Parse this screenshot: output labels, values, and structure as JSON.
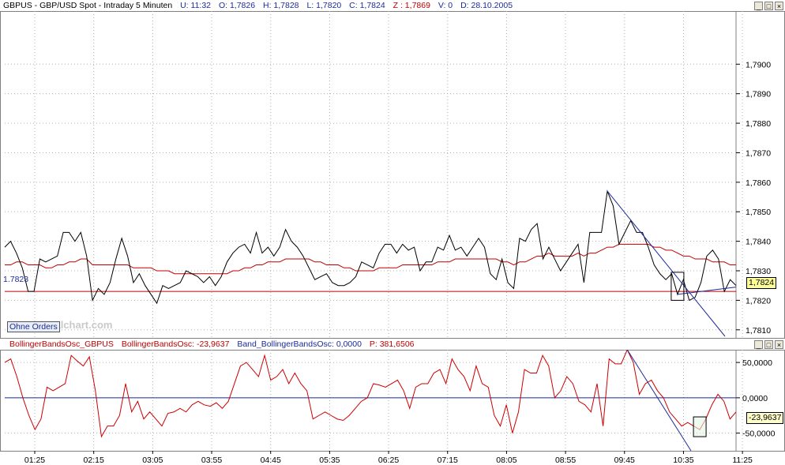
{
  "top_header": {
    "symbol": "GBPUS - GBP/USD Spot - Intraday 5 Minuten",
    "u": "U: 11:32",
    "o": "O: 1,7826",
    "h": "H: 1,7828",
    "l": "L: 1,7820",
    "c": "C: 1,7824",
    "z": "Z : 1,7869",
    "v": "V: 0",
    "d": "D: 28.10.2005"
  },
  "bottom_header": {
    "name": "BollingerBandsOsc_GBPUS",
    "osc": "BollingerBandsOsc: -23,9637",
    "band": "Band_BollingerBandsOsc: 0,0000",
    "p": "P: 381,6506"
  },
  "window_buttons": [
    "_",
    "□",
    "×"
  ],
  "watermark": "www.visualchart.com",
  "orders_button": "Ohne Orders",
  "ref_line_label": "1.7823",
  "price_tag": "1,7824",
  "osc_tag": "-23,9637",
  "colors": {
    "price": "#000000",
    "ma": "#c00000",
    "osc": "#cc0000",
    "ref_line": "#c00000",
    "zero_line": "#1a2b9c",
    "trendline": "#1a2b9c",
    "grid": "#b0b0b0"
  },
  "chart_data": [
    {
      "type": "line",
      "title": "GBPUS - GBP/USD Spot - Intraday 5 Minuten",
      "x_tick_labels": [
        "01:25",
        "02:15",
        "03:05",
        "03:55",
        "04:45",
        "05:35",
        "06:25",
        "07:15",
        "08:05",
        "08:55",
        "09:45",
        "10:35",
        "11:25"
      ],
      "y_tick_labels": [
        "1,7810",
        "1,7820",
        "1,7830",
        "1,7840",
        "1,7850",
        "1,7860",
        "1,7870",
        "1,7880",
        "1,7890",
        "1,7900"
      ],
      "ylim": [
        1.7807,
        1.7918
      ],
      "grid": true,
      "series": [
        {
          "values": [
            1.7838,
            1.784,
            1.7836,
            1.7831,
            1.7823,
            1.7823,
            1.7834,
            1.7833,
            1.7834,
            1.7835,
            1.7843,
            1.7843,
            1.784,
            1.7843,
            1.7835,
            1.782,
            1.7824,
            1.7822,
            1.7826,
            1.7834,
            1.7841,
            1.7835,
            1.7826,
            1.7829,
            1.7825,
            1.7822,
            1.7819,
            1.7825,
            1.7824,
            1.7825,
            1.7826,
            1.783,
            1.7829,
            1.7828,
            1.7826,
            1.7828,
            1.7825,
            1.7828,
            1.7833,
            1.7836,
            1.7838,
            1.7839,
            1.7836,
            1.7843,
            1.7836,
            1.7838,
            1.7835,
            1.7838,
            1.7844,
            1.784,
            1.7838,
            1.7835,
            1.7831,
            1.7827,
            1.7828,
            1.7829,
            1.7826,
            1.7825,
            1.7825,
            1.7826,
            1.7828,
            1.7833,
            1.7832,
            1.7831,
            1.7836,
            1.7839,
            1.7839,
            1.7836,
            1.7839,
            1.7837,
            1.7838,
            1.783,
            1.7833,
            1.7833,
            1.7838,
            1.7837,
            1.7842,
            1.7837,
            1.7838,
            1.7835,
            1.7838,
            1.7841,
            1.7838,
            1.7829,
            1.7827,
            1.7834,
            1.7826,
            1.7824,
            1.7841,
            1.784,
            1.7844,
            1.7846,
            1.7834,
            1.7838,
            1.7834,
            1.783,
            1.7833,
            1.7836,
            1.7839,
            1.7826,
            1.7843,
            1.7843,
            1.7843,
            1.7857,
            1.7852,
            1.7839,
            1.7843,
            1.7847,
            1.7843,
            1.7843,
            1.7838,
            1.7832,
            1.7829,
            1.7827,
            1.7829,
            1.7822,
            1.7827,
            1.782,
            1.7821,
            1.7826,
            1.7835,
            1.7837,
            1.7834,
            1.7823,
            1.7827,
            1.7825
          ]
        },
        {
          "values": [
            1.7832,
            1.7832,
            1.7833,
            1.7833,
            1.7832,
            1.7832,
            1.7832,
            1.7831,
            1.7831,
            1.7832,
            1.7832,
            1.7833,
            1.7833,
            1.7834,
            1.7834,
            1.7832,
            1.7832,
            1.7832,
            1.7832,
            1.7832,
            1.7832,
            1.7832,
            1.7831,
            1.7831,
            1.7831,
            1.7831,
            1.783,
            1.783,
            1.783,
            1.7829,
            1.7829,
            1.7829,
            1.7829,
            1.7829,
            1.7829,
            1.7829,
            1.7829,
            1.7829,
            1.7829,
            1.783,
            1.783,
            1.7831,
            1.7831,
            1.7832,
            1.7832,
            1.7833,
            1.7833,
            1.7833,
            1.7834,
            1.7834,
            1.7834,
            1.7834,
            1.7834,
            1.7833,
            1.7833,
            1.7832,
            1.7832,
            1.7832,
            1.7831,
            1.7831,
            1.783,
            1.783,
            1.783,
            1.783,
            1.7831,
            1.7831,
            1.7831,
            1.7831,
            1.7832,
            1.7832,
            1.7832,
            1.7832,
            1.7832,
            1.7832,
            1.7833,
            1.7833,
            1.7833,
            1.7834,
            1.7834,
            1.7834,
            1.7834,
            1.7834,
            1.7834,
            1.7834,
            1.7834,
            1.7833,
            1.7833,
            1.7832,
            1.7833,
            1.7833,
            1.7834,
            1.7835,
            1.7835,
            1.7836,
            1.7835,
            1.7835,
            1.7835,
            1.7835,
            1.7836,
            1.7835,
            1.7836,
            1.7836,
            1.7837,
            1.7838,
            1.7838,
            1.7839,
            1.7839,
            1.7839,
            1.7839,
            1.7839,
            1.7839,
            1.7838,
            1.7838,
            1.7837,
            1.7837,
            1.7836,
            1.7835,
            1.7835,
            1.7834,
            1.7834,
            1.7834,
            1.7833,
            1.7833,
            1.7833,
            1.7832,
            1.7832
          ]
        }
      ],
      "reference_line": 1.7823
    },
    {
      "type": "line",
      "title": "BollingerBandsOsc_GBPUS",
      "y_tick_labels": [
        "-50,0000",
        "0,0000",
        "50,0000"
      ],
      "ylim": [
        -75,
        68
      ],
      "grid": true,
      "series": [
        {
          "values": [
            50,
            55,
            30,
            0,
            -25,
            -45,
            -30,
            15,
            10,
            15,
            20,
            60,
            52,
            45,
            58,
            10,
            -55,
            -40,
            -40,
            -25,
            20,
            -20,
            -5,
            -30,
            -20,
            -30,
            -40,
            -22,
            -20,
            -15,
            -20,
            -10,
            -5,
            -10,
            -12,
            -7,
            -15,
            -5,
            20,
            45,
            50,
            40,
            30,
            60,
            25,
            30,
            40,
            20,
            35,
            20,
            10,
            -30,
            -25,
            -20,
            -25,
            -30,
            -32,
            -25,
            -15,
            -5,
            0,
            20,
            18,
            15,
            20,
            25,
            10,
            -15,
            15,
            20,
            20,
            35,
            40,
            20,
            55,
            40,
            30,
            10,
            45,
            20,
            15,
            -25,
            -40,
            -10,
            -50,
            -20,
            40,
            35,
            35,
            60,
            45,
            0,
            10,
            30,
            20,
            -5,
            -10,
            -20,
            20,
            -40,
            55,
            48,
            48,
            68,
            50,
            5,
            20,
            25,
            10,
            0,
            -20,
            -30,
            -40,
            -35,
            -40,
            -45,
            -30,
            -10,
            5,
            -5,
            -30,
            -20
          ]
        }
      ],
      "zero_line": 0
    }
  ]
}
